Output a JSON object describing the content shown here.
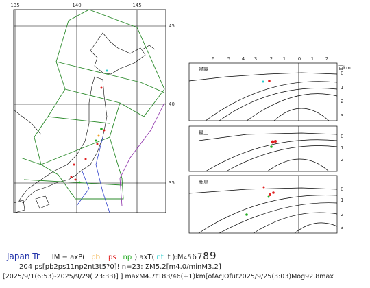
{
  "map": {
    "lon_labels": [
      "135",
      "140",
      "145"
    ],
    "lat_labels": [
      "45",
      "40",
      "35"
    ]
  },
  "sections": {
    "x_labels": [
      "6",
      "5",
      "4",
      "3",
      "2",
      "1",
      "0",
      "1",
      "2"
    ],
    "unit": "百km",
    "panels": [
      {
        "label": "襟裳",
        "depth_labels": [
          "0",
          "1",
          "2",
          "3"
        ]
      },
      {
        "label": "最上",
        "depth_labels": [
          "0",
          "1",
          "2"
        ]
      },
      {
        "label": "鹿島",
        "depth_labels": [
          "0",
          "1",
          "2",
          "3"
        ]
      }
    ]
  },
  "legend": {
    "region": "Japan Tr",
    "prefix": "IM − axP(",
    "pb": "pb",
    "ps": "ps",
    "np": "np",
    "mid": ") axT(",
    "nt": "nt",
    "t": "t",
    "suffix": "):M",
    "sizes": [
      "4",
      "5",
      "6",
      "7",
      "8",
      "9"
    ],
    "line2": "204 ps[pb2ps11np2nt3t5?0]! n=23: ΣM5.2[m4.0/minM3.2]",
    "line3": "[2025/9/1(6:53)-2025/9/29( 23:33)] ] maxM4.7t183/46(+1)km[ofAcJOfut2025/9/25(3:03)Mog92.8max"
  }
}
